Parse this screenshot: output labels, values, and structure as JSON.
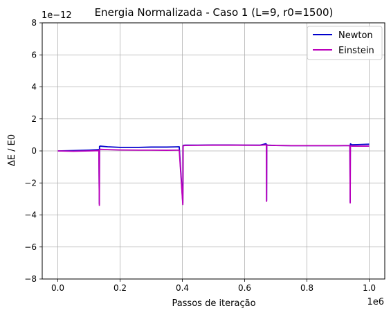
{
  "chart_data": {
    "type": "line",
    "title": "Energia Normalizada - Caso 1 (L=9, r0=1500)",
    "xlabel": "Passos de iteração",
    "ylabel": "ΔE / E0",
    "x_offset_label": "1e6",
    "y_offset_label": "1e−12",
    "xlim": [
      -0.05,
      1.05
    ],
    "ylim": [
      -8,
      8
    ],
    "x_scale": 1000000,
    "y_scale": 1e-12,
    "xticks": [
      0.0,
      0.2,
      0.4,
      0.6,
      0.8,
      1.0
    ],
    "xtick_labels": [
      "0.0",
      "0.2",
      "0.4",
      "0.6",
      "0.8",
      "1.0"
    ],
    "yticks": [
      -8,
      -6,
      -4,
      -2,
      0,
      2,
      4,
      6,
      8
    ],
    "ytick_labels": [
      "−8",
      "−6",
      "−4",
      "−2",
      "0",
      "2",
      "4",
      "6",
      "8"
    ],
    "grid": true,
    "legend_position": "top-right",
    "series": [
      {
        "name": "Newton",
        "color": "#0000cc",
        "x": [
          0.0,
          0.05,
          0.1,
          0.132,
          0.1335,
          0.134,
          0.136,
          0.16,
          0.2,
          0.26,
          0.3,
          0.35,
          0.39,
          0.4015,
          0.4025,
          0.403,
          0.41,
          0.45,
          0.5,
          0.55,
          0.6,
          0.65,
          0.668,
          0.67,
          0.6705,
          0.671,
          0.675,
          0.7,
          0.75,
          0.8,
          0.85,
          0.9,
          0.938,
          0.939,
          0.9395,
          0.94,
          0.945,
          0.97,
          1.0
        ],
        "y": [
          0.0,
          0.02,
          0.05,
          0.08,
          -3.3,
          0.28,
          0.3,
          0.26,
          0.22,
          0.22,
          0.24,
          0.24,
          0.26,
          -3.25,
          0.32,
          0.35,
          0.36,
          0.36,
          0.37,
          0.37,
          0.36,
          0.36,
          0.45,
          0.42,
          -3.1,
          0.38,
          0.36,
          0.34,
          0.33,
          0.33,
          0.33,
          0.33,
          0.34,
          -3.2,
          0.42,
          0.44,
          0.38,
          0.4,
          0.42
        ]
      },
      {
        "name": "Einstein",
        "color": "#bb00bb",
        "x": [
          0.0,
          0.05,
          0.1,
          0.132,
          0.1335,
          0.134,
          0.136,
          0.16,
          0.2,
          0.26,
          0.3,
          0.35,
          0.39,
          0.4015,
          0.4025,
          0.403,
          0.41,
          0.45,
          0.5,
          0.55,
          0.6,
          0.65,
          0.668,
          0.67,
          0.6705,
          0.671,
          0.675,
          0.7,
          0.75,
          0.8,
          0.85,
          0.9,
          0.938,
          0.939,
          0.9395,
          0.94,
          0.945,
          0.97,
          1.0
        ],
        "y": [
          0.0,
          -0.02,
          0.0,
          0.02,
          -3.4,
          0.08,
          0.1,
          0.08,
          0.06,
          0.05,
          0.05,
          0.04,
          0.05,
          -3.35,
          0.3,
          0.33,
          0.34,
          0.35,
          0.36,
          0.36,
          0.36,
          0.35,
          0.38,
          0.38,
          -3.15,
          0.36,
          0.35,
          0.34,
          0.33,
          0.33,
          0.33,
          0.33,
          0.33,
          -3.25,
          0.32,
          0.32,
          0.3,
          0.3,
          0.3
        ]
      }
    ]
  }
}
